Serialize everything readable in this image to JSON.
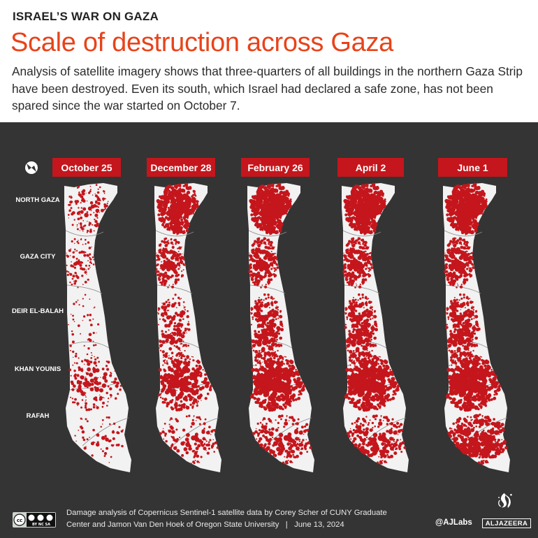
{
  "header": {
    "kicker": "ISRAEL’S WAR ON GAZA",
    "title": "Scale of destruction across Gaza",
    "subtitle": "Analysis of satellite imagery shows that three-quarters of all buildings in the northern Gaza Strip have been destroyed. Even its south, which Israel had declared a safe zone, has not been spared since the war started on October 7."
  },
  "regions": [
    {
      "id": "north-gaza",
      "label": "NORTH GAZA"
    },
    {
      "id": "gaza-city",
      "label": "GAZA CITY"
    },
    {
      "id": "deir-el-balah",
      "label": "DEIR EL-BALAH"
    },
    {
      "id": "khan-younis",
      "label": "KHAN YOUNIS"
    },
    {
      "id": "rafah",
      "label": "RAFAH"
    }
  ],
  "panels": [
    {
      "date": "October 25",
      "damage": {
        "north": 0.28,
        "city": 0.18,
        "middle": 0.1,
        "khan": 0.35,
        "rafah": 0.14
      }
    },
    {
      "date": "December 28",
      "damage": {
        "north": 0.75,
        "city": 0.4,
        "middle": 0.38,
        "khan": 0.62,
        "rafah": 0.32
      }
    },
    {
      "date": "February 26",
      "damage": {
        "north": 0.85,
        "city": 0.48,
        "middle": 0.55,
        "khan": 0.8,
        "rafah": 0.45
      }
    },
    {
      "date": "April 2",
      "damage": {
        "north": 0.85,
        "city": 0.5,
        "middle": 0.57,
        "khan": 0.82,
        "rafah": 0.5
      }
    },
    {
      "date": "June 1",
      "damage": {
        "north": 0.86,
        "city": 0.52,
        "middle": 0.58,
        "khan": 0.86,
        "rafah": 0.7
      }
    }
  ],
  "colors": {
    "damage": "#c4161c",
    "land": "#f2f2f2",
    "background": "#343434",
    "title": "#e8431a",
    "border_line": "#8a8a8a"
  },
  "footer": {
    "license_icon": "creative-commons-by-nc-sa-icon",
    "license_text": "BY NC SA",
    "credit_line1": "Damage analysis of Copernicus Sentinel-1 satellite data by Corey Scher of CUNY Graduate",
    "credit_line2": "Center and Jamon Van Den Hoek of Oregon State University   |   June 13, 2024",
    "handle": "@AJLabs",
    "logo_icon": "al-jazeera-logo-icon",
    "logo_text": "ALJAZEERA"
  }
}
